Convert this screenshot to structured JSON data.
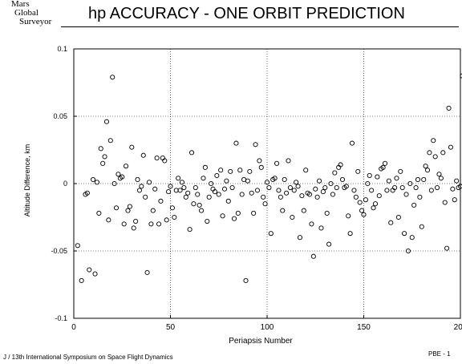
{
  "header": {
    "logo_lines": [
      "Mars",
      "Global",
      "Surveyor"
    ],
    "title": "hp ACCURACY - ONE ORBIT PREDICTION"
  },
  "footer": {
    "left": "J / 13th International Symposium on Space Flight Dynamics",
    "right": "PBE - 1"
  },
  "chart_data": {
    "type": "scatter",
    "title": "hp ACCURACY - ONE ORBIT PREDICTION",
    "xlabel": "Periapsis Number",
    "ylabel": "Altitude Difference, km",
    "xlim": [
      0,
      200
    ],
    "ylim": [
      -0.1,
      0.1
    ],
    "x_ticks": [
      0,
      50,
      100,
      150,
      200
    ],
    "x_tick_labels": [
      "0",
      "50",
      "100",
      "150",
      "200"
    ],
    "y_ticks": [
      -0.1,
      -0.05,
      0,
      0.05,
      0.1
    ],
    "y_tick_labels": [
      "-0.1",
      "-0.05",
      "0",
      "0.05",
      "0.1"
    ],
    "grid": true,
    "points": [
      [
        2,
        -0.046
      ],
      [
        4,
        -0.072
      ],
      [
        6,
        -0.008
      ],
      [
        7,
        -0.007
      ],
      [
        8,
        -0.064
      ],
      [
        10,
        0.003
      ],
      [
        11,
        -0.067
      ],
      [
        12,
        0.001
      ],
      [
        13,
        -0.022
      ],
      [
        14,
        0.026
      ],
      [
        15,
        0.015
      ],
      [
        16,
        0.02
      ],
      [
        17,
        0.046
      ],
      [
        18,
        -0.027
      ],
      [
        19,
        0.032
      ],
      [
        20,
        0.079
      ],
      [
        21,
        0.0
      ],
      [
        22,
        -0.018
      ],
      [
        23,
        0.007
      ],
      [
        24,
        0.004
      ],
      [
        25,
        0.005
      ],
      [
        26,
        -0.03
      ],
      [
        27,
        0.013
      ],
      [
        28,
        -0.02
      ],
      [
        29,
        -0.017
      ],
      [
        30,
        0.027
      ],
      [
        31,
        -0.033
      ],
      [
        32,
        -0.028
      ],
      [
        33,
        0.003
      ],
      [
        34,
        -0.005
      ],
      [
        35,
        -0.002
      ],
      [
        36,
        0.021
      ],
      [
        37,
        -0.01
      ],
      [
        38,
        -0.066
      ],
      [
        39,
        0.001
      ],
      [
        40,
        -0.03
      ],
      [
        41,
        -0.02
      ],
      [
        42,
        -0.004
      ],
      [
        43,
        0.019
      ],
      [
        44,
        -0.03
      ],
      [
        45,
        -0.013
      ],
      [
        46,
        0.019
      ],
      [
        47,
        0.017
      ],
      [
        48,
        -0.027
      ],
      [
        49,
        -0.006
      ],
      [
        50,
        -0.002
      ],
      [
        51,
        -0.018
      ],
      [
        52,
        -0.025
      ],
      [
        53,
        -0.005
      ],
      [
        54,
        0.004
      ],
      [
        55,
        -0.005
      ],
      [
        56,
        0.001
      ],
      [
        57,
        -0.003
      ],
      [
        58,
        -0.01
      ],
      [
        59,
        -0.007
      ],
      [
        60,
        -0.034
      ],
      [
        61,
        0.023
      ],
      [
        62,
        -0.015
      ],
      [
        63,
        -0.003
      ],
      [
        64,
        -0.008
      ],
      [
        65,
        -0.016
      ],
      [
        66,
        -0.02
      ],
      [
        67,
        0.004
      ],
      [
        68,
        0.012
      ],
      [
        69,
        -0.028
      ],
      [
        70,
        -0.01
      ],
      [
        71,
        0.0
      ],
      [
        72,
        -0.004
      ],
      [
        73,
        -0.006
      ],
      [
        74,
        0.006
      ],
      [
        75,
        -0.008
      ],
      [
        76,
        0.01
      ],
      [
        77,
        -0.024
      ],
      [
        78,
        -0.004
      ],
      [
        79,
        0.002
      ],
      [
        80,
        -0.013
      ],
      [
        81,
        0.009
      ],
      [
        82,
        -0.003
      ],
      [
        83,
        -0.026
      ],
      [
        84,
        0.03
      ],
      [
        85,
        -0.022
      ],
      [
        86,
        0.01
      ],
      [
        87,
        -0.008
      ],
      [
        88,
        0.003
      ],
      [
        89,
        -0.072
      ],
      [
        90,
        0.002
      ],
      [
        91,
        0.009
      ],
      [
        92,
        -0.007
      ],
      [
        93,
        -0.022
      ],
      [
        94,
        0.029
      ],
      [
        95,
        -0.005
      ],
      [
        96,
        0.017
      ],
      [
        97,
        0.012
      ],
      [
        98,
        -0.01
      ],
      [
        99,
        -0.015
      ],
      [
        100,
        0.001
      ],
      [
        101,
        -0.003
      ],
      [
        102,
        -0.037
      ],
      [
        103,
        0.003
      ],
      [
        104,
        0.004
      ],
      [
        105,
        0.015
      ],
      [
        106,
        -0.005
      ],
      [
        107,
        -0.01
      ],
      [
        108,
        -0.02
      ],
      [
        109,
        0.003
      ],
      [
        110,
        -0.007
      ],
      [
        111,
        0.017
      ],
      [
        112,
        -0.003
      ],
      [
        113,
        -0.025
      ],
      [
        114,
        -0.005
      ],
      [
        115,
        0.001
      ],
      [
        116,
        -0.002
      ],
      [
        117,
        -0.04
      ],
      [
        118,
        -0.009
      ],
      [
        119,
        -0.02
      ],
      [
        120,
        0.01
      ],
      [
        121,
        -0.007
      ],
      [
        122,
        -0.008
      ],
      [
        123,
        -0.03
      ],
      [
        124,
        -0.054
      ],
      [
        125,
        -0.004
      ],
      [
        126,
        -0.01
      ],
      [
        127,
        0.002
      ],
      [
        128,
        -0.033
      ],
      [
        129,
        -0.006
      ],
      [
        130,
        -0.003
      ],
      [
        131,
        -0.022
      ],
      [
        132,
        -0.045
      ],
      [
        133,
        0.0
      ],
      [
        134,
        -0.008
      ],
      [
        135,
        0.008
      ],
      [
        136,
        -0.003
      ],
      [
        137,
        0.012
      ],
      [
        138,
        0.014
      ],
      [
        139,
        0.003
      ],
      [
        140,
        -0.003
      ],
      [
        141,
        -0.002
      ],
      [
        142,
        -0.024
      ],
      [
        143,
        -0.037
      ],
      [
        144,
        0.03
      ],
      [
        145,
        -0.005
      ],
      [
        146,
        -0.01
      ],
      [
        147,
        0.009
      ],
      [
        148,
        -0.014
      ],
      [
        149,
        -0.02
      ],
      [
        150,
        -0.023
      ],
      [
        151,
        -0.012
      ],
      [
        152,
        0.0
      ],
      [
        153,
        0.006
      ],
      [
        154,
        -0.005
      ],
      [
        155,
        -0.018
      ],
      [
        156,
        -0.015
      ],
      [
        157,
        0.005
      ],
      [
        158,
        -0.009
      ],
      [
        159,
        0.011
      ],
      [
        160,
        0.012
      ],
      [
        161,
        0.015
      ],
      [
        162,
        -0.005
      ],
      [
        163,
        0.002
      ],
      [
        164,
        -0.029
      ],
      [
        165,
        -0.005
      ],
      [
        166,
        -0.003
      ],
      [
        167,
        0.004
      ],
      [
        168,
        -0.025
      ],
      [
        169,
        0.009
      ],
      [
        170,
        -0.003
      ],
      [
        171,
        -0.037
      ],
      [
        172,
        -0.008
      ],
      [
        173,
        -0.05
      ],
      [
        174,
        0.0
      ],
      [
        175,
        -0.04
      ],
      [
        176,
        -0.016
      ],
      [
        177,
        -0.003
      ],
      [
        178,
        0.003
      ],
      [
        179,
        -0.01
      ],
      [
        180,
        -0.032
      ],
      [
        181,
        0.003
      ],
      [
        182,
        0.013
      ],
      [
        183,
        0.01
      ],
      [
        184,
        0.023
      ],
      [
        185,
        -0.005
      ],
      [
        186,
        0.032
      ],
      [
        187,
        0.02
      ],
      [
        188,
        -0.003
      ],
      [
        189,
        0.007
      ],
      [
        190,
        0.004
      ],
      [
        191,
        0.023
      ],
      [
        192,
        -0.014
      ],
      [
        193,
        -0.048
      ],
      [
        194,
        0.056
      ],
      [
        195,
        0.027
      ],
      [
        196,
        -0.004
      ],
      [
        197,
        -0.012
      ],
      [
        198,
        0.002
      ],
      [
        199,
        -0.003
      ],
      [
        200,
        -0.002
      ],
      [
        201,
        0.08
      ]
    ]
  }
}
